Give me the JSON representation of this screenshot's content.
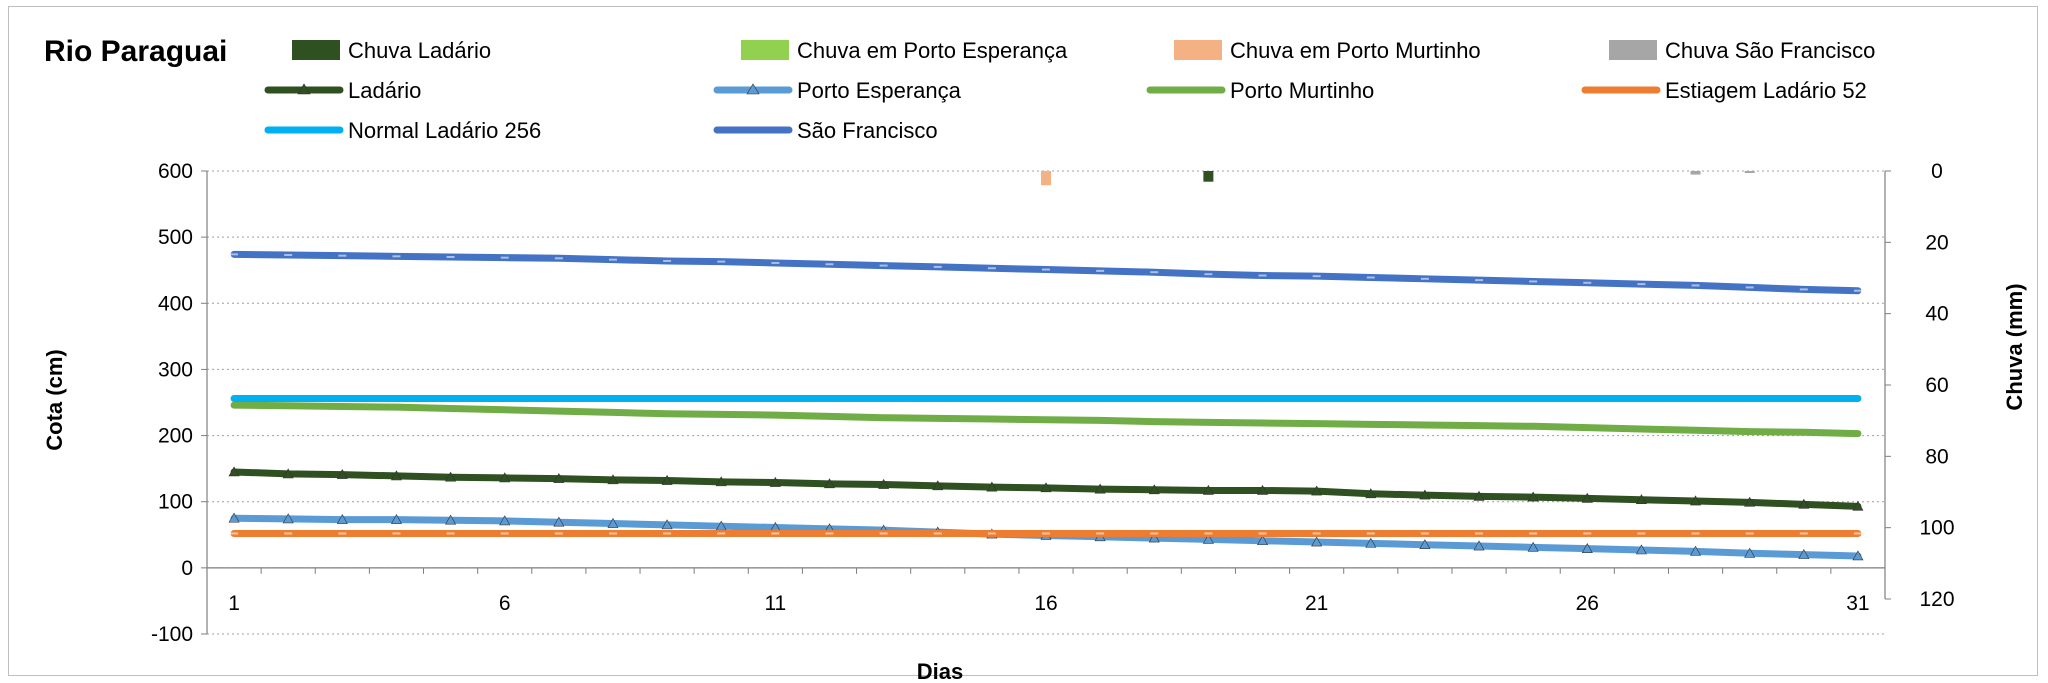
{
  "chart_data": {
    "type": "line",
    "title": "Rio Paraguai",
    "xlabel": "Dias",
    "ylabel": "Cota  (cm)",
    "y2label": "Chuva (mm)",
    "xlim": [
      1,
      31
    ],
    "ylim": [
      -100,
      600
    ],
    "y2lim": [
      0,
      120
    ],
    "y2_reversed": true,
    "xticks": [
      "1",
      "6",
      "11",
      "16",
      "21",
      "26",
      "31"
    ],
    "yticks": [
      "600",
      "500",
      "400",
      "300",
      "200",
      "100",
      "0",
      "-100"
    ],
    "y2ticks": [
      "0",
      "20",
      "40",
      "60",
      "80",
      "100",
      "120"
    ],
    "grid": true,
    "legend_placement": "top",
    "x": [
      1,
      2,
      3,
      4,
      5,
      6,
      7,
      8,
      9,
      10,
      11,
      12,
      13,
      14,
      15,
      16,
      17,
      18,
      19,
      20,
      21,
      22,
      23,
      24,
      25,
      26,
      27,
      28,
      29,
      30,
      31
    ],
    "bars": [
      {
        "name": "Chuva Ladário",
        "color": "#2f5020",
        "values": {
          "19": 3
        }
      },
      {
        "name": "Chuva em Porto Esperança",
        "color": "#92d050",
        "values": {}
      },
      {
        "name": "Chuva em Porto Murtinho",
        "color": "#f4b183",
        "values": {
          "16": 4
        }
      },
      {
        "name": "Chuva São Francisco",
        "color": "#a6a6a6",
        "values": {
          "28": 1,
          "29": 0.3
        }
      }
    ],
    "series": [
      {
        "name": "Ladário",
        "color": "#2f5020",
        "marker": "triangle",
        "values": [
          145,
          142,
          141,
          139,
          137,
          136,
          135,
          133,
          132,
          130,
          129,
          127,
          126,
          124,
          122,
          121,
          119,
          118,
          117,
          117,
          116,
          112,
          110,
          108,
          107,
          105,
          103,
          101,
          99,
          96,
          93
        ]
      },
      {
        "name": "Porto Esperança",
        "color": "#5b9bd5",
        "marker": "triangle",
        "values": [
          75,
          74,
          73,
          73,
          72,
          71,
          69,
          67,
          65,
          63,
          61,
          59,
          57,
          54,
          51,
          49,
          47,
          45,
          43,
          41,
          39,
          37,
          35,
          33,
          31,
          29,
          27,
          25,
          22,
          20,
          18
        ]
      },
      {
        "name": "Porto Murtinho",
        "color": "#70ad47",
        "marker": "none",
        "values": [
          246,
          245,
          244,
          243,
          241,
          239,
          237,
          235,
          233,
          232,
          231,
          229,
          227,
          226,
          225,
          224,
          223,
          221,
          220,
          219,
          218,
          217,
          216,
          215,
          214,
          212,
          210,
          208,
          206,
          205,
          203
        ]
      },
      {
        "name": "Estiagem Ladário 52",
        "color": "#ed7d31",
        "marker": "dash",
        "values": [
          52,
          52,
          52,
          52,
          52,
          52,
          52,
          52,
          52,
          52,
          52,
          52,
          52,
          52,
          52,
          52,
          52,
          52,
          52,
          52,
          52,
          52,
          52,
          52,
          52,
          52,
          52,
          52,
          52,
          52,
          52
        ]
      },
      {
        "name": "Normal Ladário 256",
        "color": "#00b0f0",
        "marker": "none",
        "values": [
          256,
          256,
          256,
          256,
          256,
          256,
          256,
          256,
          256,
          256,
          256,
          256,
          256,
          256,
          256,
          256,
          256,
          256,
          256,
          256,
          256,
          256,
          256,
          256,
          256,
          256,
          256,
          256,
          256,
          256,
          256
        ]
      },
      {
        "name": "São Francisco",
        "color": "#4472c4",
        "marker": "dash",
        "values": [
          474,
          473,
          472,
          471,
          470,
          469,
          468,
          466,
          464,
          463,
          461,
          459,
          457,
          455,
          453,
          451,
          449,
          447,
          444,
          442,
          441,
          439,
          437,
          435,
          433,
          431,
          429,
          427,
          424,
          421,
          419
        ]
      }
    ]
  }
}
